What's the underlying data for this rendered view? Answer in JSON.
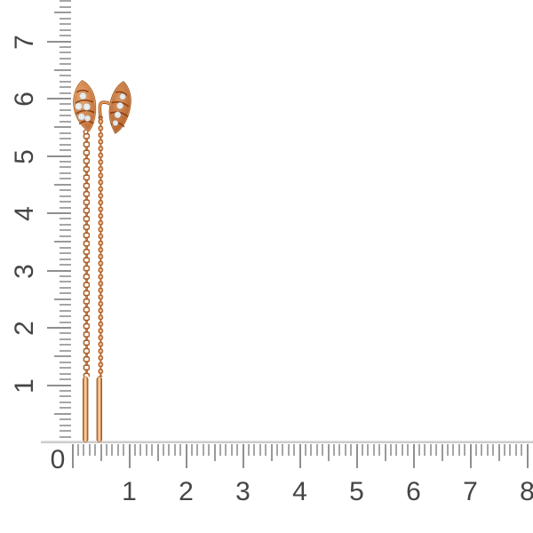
{
  "scene": {
    "background": "#ffffff"
  },
  "rulers": {
    "origin_label": "0",
    "horizontal_labels": [
      "1",
      "2",
      "3",
      "4",
      "5",
      "6",
      "7",
      "8"
    ],
    "vertical_labels": [
      "1",
      "2",
      "3",
      "4",
      "5",
      "6",
      "7"
    ],
    "colors": {
      "tick_minor": "#a6a6a6",
      "tick_medium": "#9a9a9a",
      "tick_major": "#8f8f8f",
      "edge_band": "#c9c9c9",
      "label": "#454545"
    }
  },
  "earrings": {
    "colors": {
      "gold_mid": "#c97740",
      "gold_dark": "#8d3f12",
      "gold_deep": "#a9571f",
      "gold_light": "#f2cd9c",
      "gold_highlight": "#fadfbb",
      "diamond": "#f5f7f8",
      "diamond_edge": "#b6bdc4",
      "chain_hole": "#ffffff"
    }
  }
}
